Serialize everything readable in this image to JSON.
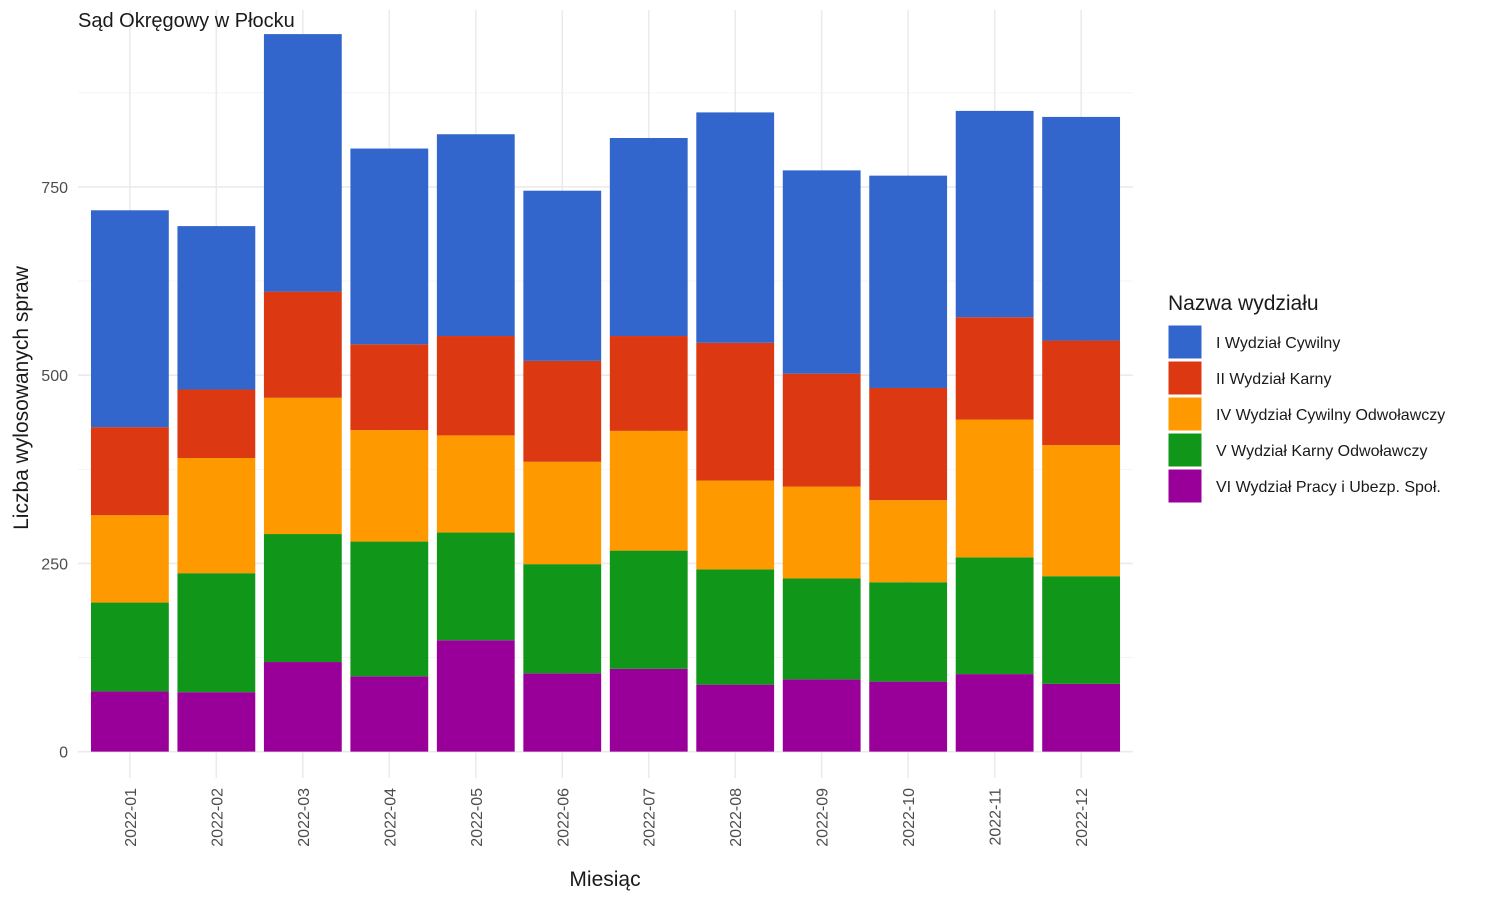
{
  "chart_data": {
    "type": "bar",
    "stacked": true,
    "title": "Sąd Okręgowy w Płocku",
    "xlabel": "Miesiąc",
    "ylabel": "Liczba wylosowanych spraw",
    "ylim": [
      -35,
      985
    ],
    "yticks": [
      0,
      250,
      500,
      750
    ],
    "grid": true,
    "legend_title": "Nazwa wydziału",
    "legend_position": "right",
    "categories": [
      "2022-01",
      "2022-02",
      "2022-03",
      "2022-04",
      "2022-05",
      "2022-06",
      "2022-07",
      "2022-08",
      "2022-09",
      "2022-10",
      "2022-11",
      "2022-12"
    ],
    "series": [
      {
        "name": "I Wydział Cywilny",
        "color": "#3366cc",
        "values": [
          288,
          217,
          342,
          260,
          268,
          226,
          263,
          306,
          270,
          282,
          274,
          297
        ]
      },
      {
        "name": "II Wydział Karny",
        "color": "#dc3912",
        "values": [
          117,
          91,
          141,
          114,
          132,
          134,
          126,
          183,
          150,
          149,
          136,
          139
        ]
      },
      {
        "name": "IV Wydział Cywilny Odwoławczy",
        "color": "#ff9900",
        "values": [
          116,
          153,
          181,
          148,
          129,
          136,
          159,
          118,
          122,
          109,
          183,
          174
        ]
      },
      {
        "name": "V Wydział Karny Odwoławczy",
        "color": "#109618",
        "values": [
          118,
          158,
          170,
          179,
          143,
          145,
          157,
          153,
          134,
          132,
          155,
          143
        ]
      },
      {
        "name": "VI Wydział Pracy i Ubezp. Społ.",
        "color": "#990099",
        "values": [
          80,
          79,
          119,
          100,
          148,
          104,
          110,
          89,
          96,
          93,
          103,
          90
        ]
      }
    ]
  }
}
